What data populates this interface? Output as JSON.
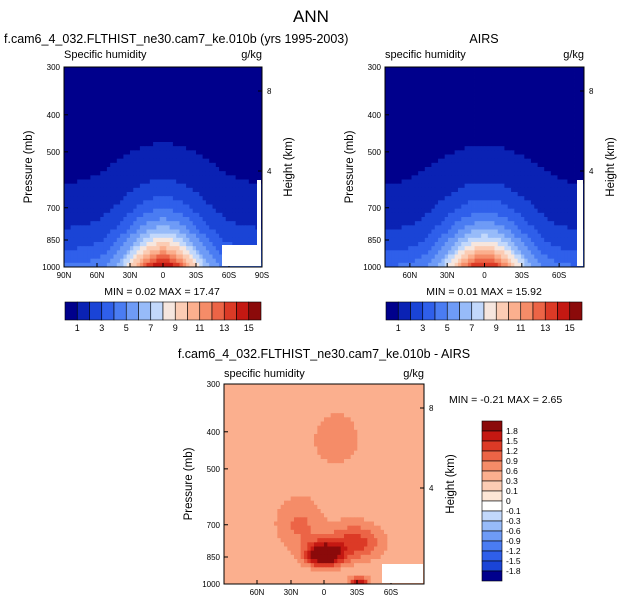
{
  "figure_title": "ANN",
  "chart_data": [
    {
      "type": "heatmap",
      "title": "f.cam6_4_032.FLTHIST_ne30.cam7_ke.010b (yrs 1995-2003)",
      "left_label": "Specific humidity",
      "right_label": "g/kg",
      "ylabel": "Pressure (mb)",
      "ylabel_right": "Height (km)",
      "x_ticks": [
        "90N",
        "60N",
        "30N",
        "0",
        "30S",
        "60S",
        "90S"
      ],
      "y_ticks": [
        "300",
        "400",
        "500",
        "700",
        "850",
        "1000"
      ],
      "right_ticks": [
        "8",
        "4"
      ],
      "min_max": "MIN =  0.02  MAX =  17.47",
      "peak": 15,
      "width_scale": 1.0
    },
    {
      "type": "heatmap",
      "title": "AIRS",
      "left_label": "specific humidity",
      "right_label": "g/kg",
      "ylabel": "Pressure (mb)",
      "ylabel_right": "Height (km)",
      "x_ticks": [
        "60N",
        "30N",
        "0",
        "30S",
        "60S"
      ],
      "y_ticks": [
        "300",
        "400",
        "500",
        "700",
        "850",
        "1000"
      ],
      "right_ticks": [
        "8",
        "4"
      ],
      "min_max": "MIN =  0.01  MAX =  15.92",
      "peak": 14,
      "width_scale": 0.95
    },
    {
      "type": "heatmap",
      "title": "f.cam6_4_032.FLTHIST_ne30.cam7_ke.010b - AIRS",
      "left_label": "specific humidity",
      "right_label": "g/kg",
      "ylabel": "Pressure (mb)",
      "ylabel_right": "Height (km)",
      "x_ticks": [
        "60N",
        "30N",
        "0",
        "30S",
        "60S"
      ],
      "y_ticks": [
        "300",
        "400",
        "500",
        "700",
        "850",
        "1000"
      ],
      "right_ticks": [
        "8",
        "4"
      ],
      "min_max": "MIN = -0.21  MAX =   2.65",
      "max_value": 2.65
    }
  ],
  "colorbar_top": {
    "labels": [
      "1",
      "3",
      "5",
      "7",
      "9",
      "11",
      "13",
      "15"
    ],
    "colors": [
      "#00008c",
      "#0a22b4",
      "#1a44d6",
      "#2f5fea",
      "#4a7cf2",
      "#6e9bf6",
      "#97bbf9",
      "#c2d8fb",
      "#f6e6de",
      "#fbccb4",
      "#fbaf8e",
      "#f58c68",
      "#ec6446",
      "#dc3a26",
      "#c41812",
      "#8b0a0a"
    ]
  },
  "colorbar_diff": {
    "labels": [
      "1.8",
      "1.5",
      "1.2",
      "0.9",
      "0.6",
      "0.3",
      "0.1",
      "0",
      "-0.1",
      "-0.3",
      "-0.6",
      "-0.9",
      "-1.2",
      "-1.5",
      "-1.8"
    ],
    "colors": [
      "#8b0a0a",
      "#c41812",
      "#dc3a26",
      "#ec6446",
      "#f58c68",
      "#fbaf8e",
      "#fbccb4",
      "#fde6d6",
      "#ffffff",
      "#c2d8fb",
      "#97bbf9",
      "#6e9bf6",
      "#4a7cf2",
      "#2f5fea",
      "#1a44d6",
      "#00008c"
    ]
  }
}
